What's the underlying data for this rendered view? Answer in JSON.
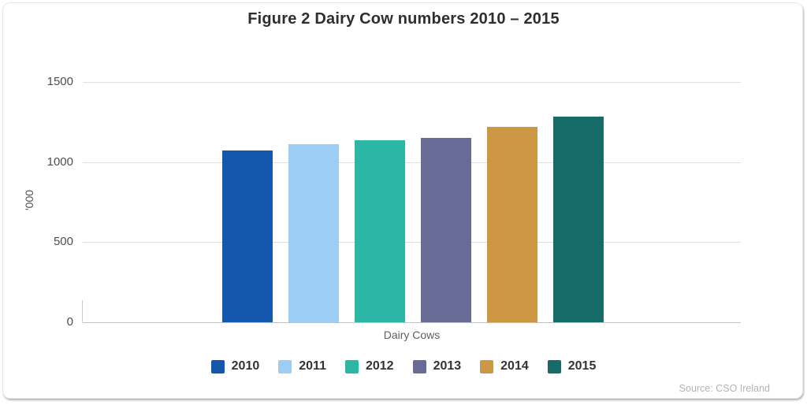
{
  "chart_data": {
    "type": "bar",
    "title": "Figure 2 Dairy Cow numbers 2010 – 2015",
    "categories": [
      "2010",
      "2011",
      "2012",
      "2013",
      "2014",
      "2015"
    ],
    "values": [
      1070,
      1110,
      1135,
      1150,
      1220,
      1285
    ],
    "colors": [
      "#1457AD",
      "#9BCDF5",
      "#2CB6A6",
      "#676B96",
      "#CE9743",
      "#156B68"
    ],
    "xlabel": "Dairy Cows",
    "ylabel": "'000",
    "ylim": [
      0,
      1500
    ],
    "yticks": [
      0,
      500,
      1000,
      1500
    ],
    "grid": true,
    "legend_position": "bottom",
    "source": "Source: CSO Ireland"
  }
}
